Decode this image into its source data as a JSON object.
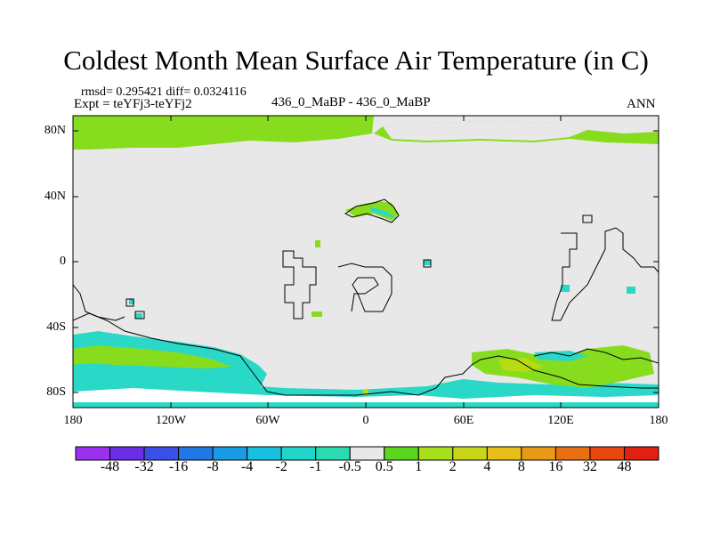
{
  "header": {
    "title": "Coldest Month Mean Surface Air Temperature (in C)",
    "stats": "rmsd= 0.295421  diff= 0.0324116",
    "expt": "Expt = teYFj3-teYFj2",
    "center_label": "436_0_MaBP - 436_0_MaBP",
    "season": "ANN"
  },
  "axes": {
    "y_ticks": [
      "80N",
      "40N",
      "0",
      "40S",
      "80S"
    ],
    "x_ticks": [
      "180",
      "120W",
      "60W",
      "0",
      "60E",
      "120E",
      "180"
    ]
  },
  "colorbar": {
    "labels": [
      "-48",
      "-32",
      "-16",
      "-8",
      "-4",
      "-2",
      "-1",
      "-0.5",
      "0.5",
      "1",
      "2",
      "4",
      "8",
      "16",
      "32",
      "48"
    ],
    "colors": [
      "#9b30f0",
      "#6a2ee6",
      "#3a4ee8",
      "#1f78e6",
      "#1a9be6",
      "#17bfe0",
      "#1fd6c8",
      "#28dcb0",
      "#e8e8e8",
      "#5ad61e",
      "#a8e01c",
      "#c8d61a",
      "#e6c018",
      "#e89a16",
      "#e87012",
      "#e8480e",
      "#e02010"
    ]
  },
  "map_colors": {
    "background": "#e8e8e8",
    "green": "#88dc1e",
    "cyan": "#2ad8c8",
    "yellow_green": "#b8dc10",
    "outline": "#000000"
  }
}
